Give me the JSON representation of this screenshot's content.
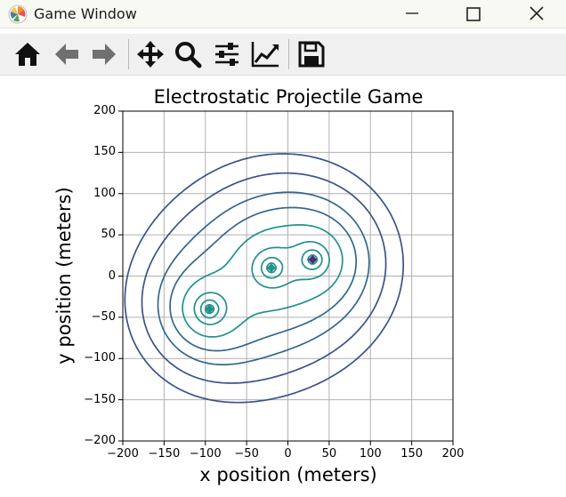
{
  "window": {
    "title": "Game Window",
    "icon": "matplotlib-logo-icon",
    "controls": [
      "minimize-icon",
      "maximize-icon",
      "close-icon"
    ]
  },
  "toolbar": {
    "buttons": [
      {
        "name": "home",
        "icon": "home-icon"
      },
      {
        "name": "back",
        "icon": "arrow-left-icon"
      },
      {
        "name": "forward",
        "icon": "arrow-right-icon"
      },
      {
        "name": "pan",
        "icon": "move-icon"
      },
      {
        "name": "zoom",
        "icon": "magnifier-icon"
      },
      {
        "name": "subplots",
        "icon": "sliders-icon"
      },
      {
        "name": "edit-axis",
        "icon": "chart-line-icon"
      },
      {
        "name": "save",
        "icon": "floppy-disk-icon"
      }
    ]
  },
  "chart_data": {
    "type": "contour",
    "title": "Electrostatic Projectile Game",
    "xlabel": "x position (meters)",
    "ylabel": "y position (meters)",
    "xlim": [
      -200,
      200
    ],
    "ylim": [
      -200,
      200
    ],
    "xticks": [
      -200,
      -150,
      -100,
      -50,
      0,
      50,
      100,
      150,
      200
    ],
    "yticks": [
      -200,
      -150,
      -100,
      -50,
      0,
      50,
      100,
      150,
      200
    ],
    "xtick_labels": [
      "−200",
      "−150",
      "−100",
      "−50",
      "0",
      "50",
      "100",
      "150",
      "200"
    ],
    "ytick_labels": [
      "−200",
      "−150",
      "−100",
      "−50",
      "0",
      "50",
      "100",
      "150",
      "200"
    ],
    "grid": true,
    "charges": [
      {
        "x": -95,
        "y": -40,
        "color": "#21918c"
      },
      {
        "x": -20,
        "y": 10,
        "color": "#21918c"
      },
      {
        "x": 30,
        "y": 20,
        "color": "#472d7b"
      }
    ],
    "colors": {
      "contour_dark": "#3b528b",
      "contour_mid": "#31688e",
      "contour_teal": "#21918c",
      "contour_purple": "#472d7b",
      "grid": "#b0b0b0"
    }
  }
}
